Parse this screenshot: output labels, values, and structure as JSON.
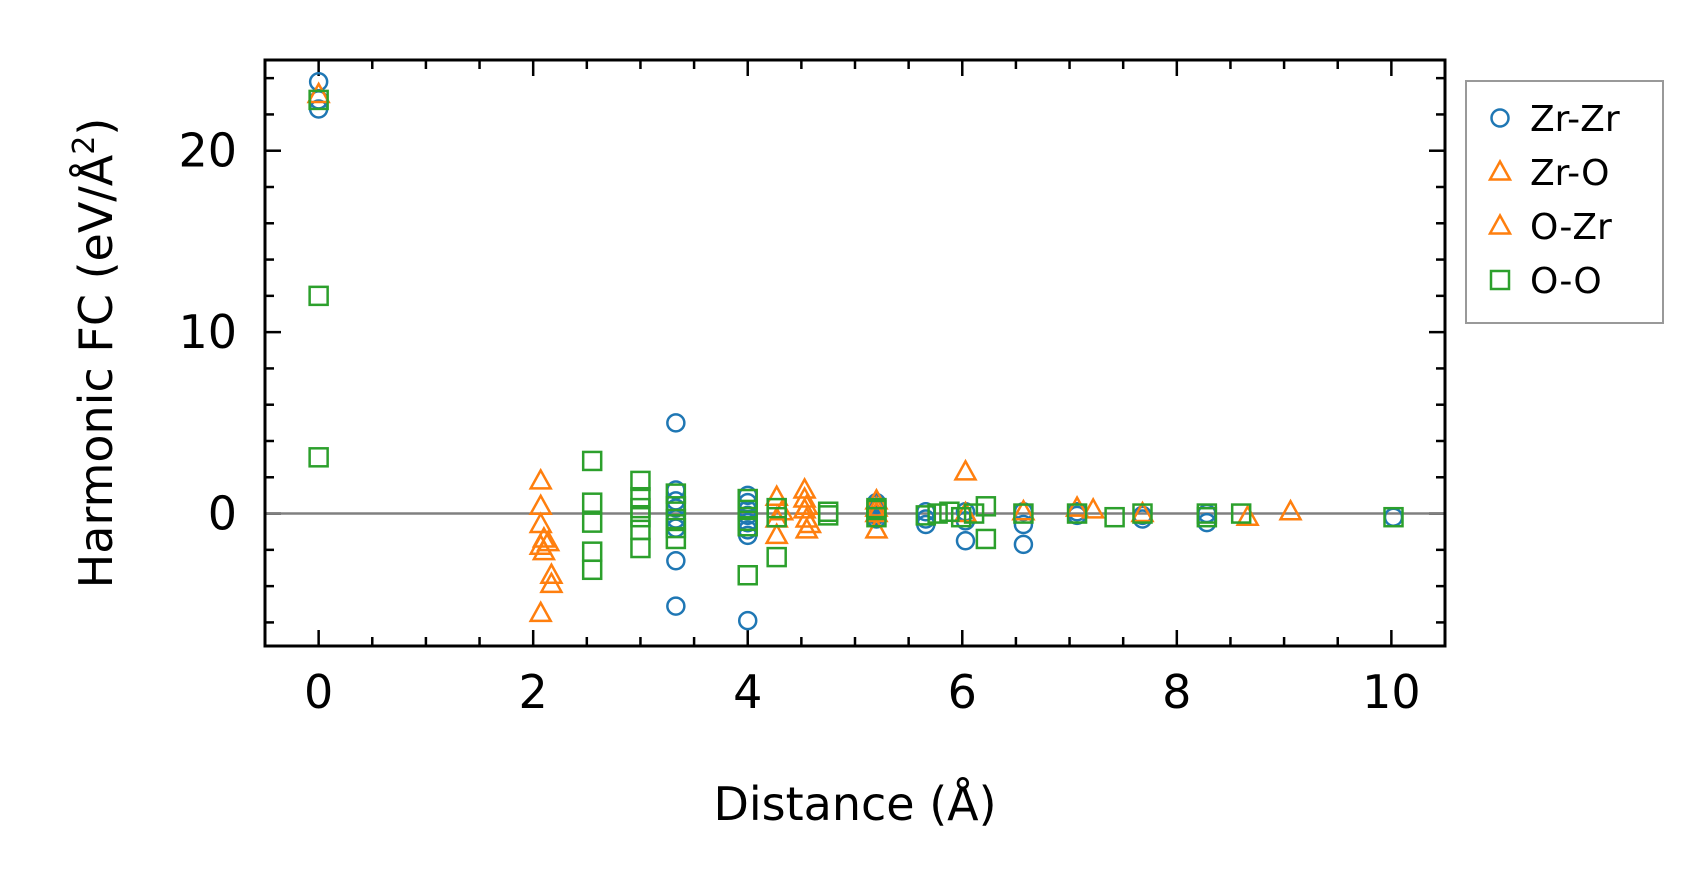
{
  "chart_data": {
    "type": "scatter",
    "title": "",
    "xlabel": "Distance (Å)",
    "ylabel_main": "Harmonic FC (eV/Å",
    "ylabel_sup": "2",
    "ylabel_close": ")",
    "xlim": [
      -0.5,
      10.5
    ],
    "ylim": [
      -7.3,
      25
    ],
    "xticks": [
      0,
      2,
      4,
      6,
      8,
      10
    ],
    "xtick_labels": [
      "0",
      "2",
      "4",
      "6",
      "8",
      "10"
    ],
    "yticks": [
      0,
      10,
      20
    ],
    "ytick_labels": [
      "0",
      "10",
      "20"
    ],
    "zero_line": 0,
    "legend_position": "outside-right-top",
    "series": [
      {
        "name": "Zr-Zr",
        "marker": "circle",
        "color": "#1f77b4",
        "x": [
          0,
          0,
          0,
          3.33,
          3.33,
          3.33,
          3.33,
          3.33,
          3.33,
          3.33,
          3.33,
          4.0,
          4.0,
          4.0,
          4.0,
          4.0,
          4.0,
          4.0,
          4.0,
          4.0,
          5.2,
          5.2,
          5.2,
          5.2,
          5.2,
          5.66,
          5.66,
          5.66,
          6.03,
          6.03,
          6.03,
          6.57,
          6.57,
          6.57,
          7.07,
          7.07,
          7.68,
          7.68,
          8.28,
          8.28,
          10.02
        ],
        "y": [
          23.8,
          22.3,
          22.8,
          5.0,
          1.3,
          0.7,
          0.3,
          -0.3,
          -0.8,
          -2.6,
          -5.1,
          1.0,
          0.6,
          0.2,
          -0.1,
          -0.5,
          -0.9,
          -1.2,
          -5.9,
          -0.5,
          0.5,
          0.2,
          -0.1,
          -0.3,
          0.6,
          0.1,
          -0.6,
          -0.3,
          0.1,
          -0.4,
          -1.5,
          0.1,
          -0.6,
          -1.7,
          0.1,
          -0.1,
          -0.3,
          -0.1,
          -0.5,
          0.0,
          -0.2
        ]
      },
      {
        "name": "Zr-O",
        "marker": "triangle",
        "color": "#ff7f0e",
        "x": [
          0,
          2.07,
          2.07,
          2.07,
          2.07,
          2.1,
          2.1,
          2.14,
          2.17,
          2.17,
          4.27,
          4.27,
          4.27,
          4.32,
          4.53,
          4.53,
          4.53,
          4.55,
          4.55,
          4.58,
          5.2,
          5.2,
          5.2,
          6.03,
          6.03,
          6.57,
          7.07,
          7.22,
          7.68,
          8.66,
          9.06
        ],
        "y": [
          23.1,
          1.8,
          0.4,
          -0.6,
          -1.8,
          -2.1,
          -1.4,
          -1.6,
          -3.4,
          -3.9,
          0.9,
          -0.3,
          -1.2,
          0.1,
          1.3,
          0.8,
          0.2,
          -0.3,
          -0.9,
          -0.6,
          0.7,
          0.0,
          -0.9,
          2.3,
          0.0,
          0.1,
          0.3,
          0.2,
          0.0,
          -0.2,
          0.1
        ]
      },
      {
        "name": "O-Zr",
        "marker": "triangle",
        "color": "#ff7f0e",
        "x": [
          2.07,
          4.55,
          5.2
        ],
        "y": [
          -5.5,
          0.4,
          0.3
        ]
      },
      {
        "name": "O-O",
        "marker": "square",
        "color": "#2ca02c",
        "x": [
          0,
          0,
          0,
          2.55,
          2.55,
          2.55,
          2.55,
          2.55,
          3.0,
          3.0,
          3.0,
          3.0,
          3.0,
          3.0,
          3.33,
          3.33,
          3.33,
          3.33,
          3.33,
          4.0,
          4.0,
          4.0,
          4.0,
          4.0,
          4.27,
          4.27,
          4.27,
          4.75,
          4.75,
          5.2,
          5.2,
          5.2,
          5.66,
          5.77,
          5.88,
          5.99,
          6.11,
          6.22,
          6.22,
          6.57,
          7.07,
          7.42,
          7.68,
          8.28,
          8.28,
          8.6,
          10.02
        ],
        "y": [
          22.8,
          12.0,
          3.1,
          2.9,
          0.6,
          -0.5,
          -2.1,
          -3.1,
          1.8,
          0.9,
          0.3,
          -0.2,
          -0.9,
          -1.9,
          1.1,
          0.4,
          -0.3,
          -1.4,
          -0.8,
          0.8,
          0.2,
          -0.4,
          -3.4,
          -0.7,
          0.3,
          -0.2,
          -2.4,
          0.1,
          -0.1,
          0.2,
          -0.2,
          0.3,
          -0.1,
          0.0,
          0.1,
          -0.2,
          0.0,
          0.4,
          -1.4,
          0.0,
          0.0,
          -0.2,
          0.0,
          0.0,
          -0.2,
          0.0,
          -0.2
        ]
      }
    ]
  }
}
